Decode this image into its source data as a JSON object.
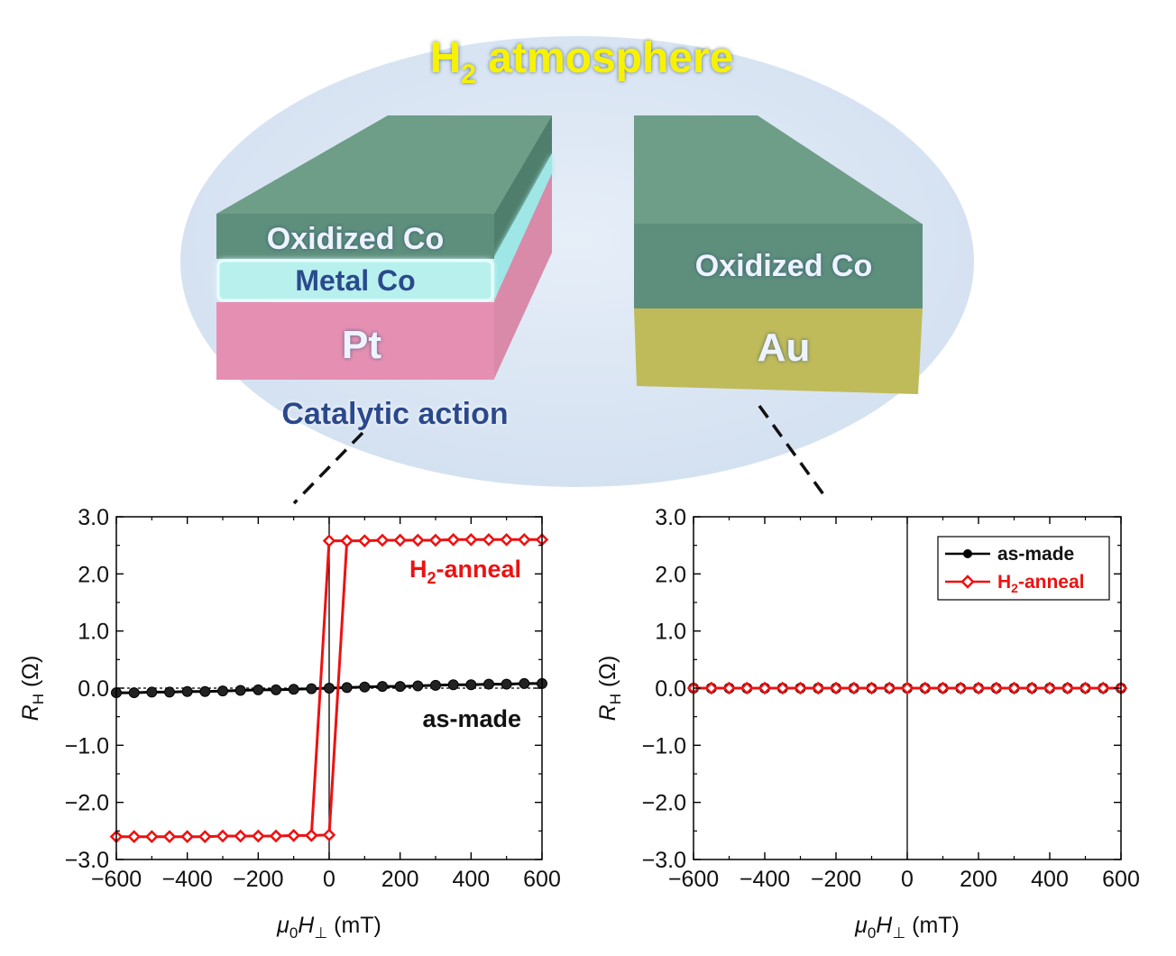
{
  "schematic": {
    "title_main": "H",
    "title_sub": "2",
    "title_rest": " atmosphere",
    "left_stack": {
      "top_layer": "Oxidized Co",
      "mid_layer": "Metal Co",
      "bottom_layer": "Pt",
      "caption": "Catalytic action"
    },
    "right_stack": {
      "top_layer": "Oxidized Co",
      "bottom_layer": "Au"
    },
    "colors": {
      "atmosphere": "#dbe6f4",
      "oxidized_co": "#5e8f7c",
      "metal_co": "#b8f0ee",
      "pt": "#e58fb2",
      "au": "#bfbb5a",
      "title": "#f7f200"
    }
  },
  "chart_data": [
    {
      "type": "line",
      "panel": "left",
      "xlabel_main": "μ",
      "xlabel_sub0": "0",
      "xlabel_h": "H",
      "xlabel_perp": "⊥",
      "xlabel_unit": " (mT)",
      "ylabel_main": "R",
      "ylabel_sub": "H",
      "ylabel_unit": " (Ω)",
      "xlim": [
        -600,
        600
      ],
      "ylim": [
        -3.0,
        3.0
      ],
      "xticks": [
        "−600",
        "−400",
        "−200",
        "0",
        "200",
        "400",
        "600"
      ],
      "yticks": [
        "3.0",
        "2.0",
        "1.0",
        "0.0",
        "−1.0",
        "−2.0",
        "−3.0"
      ],
      "annotations": {
        "h2": "H",
        "h2_sub": "2",
        "h2_rest": "-anneal",
        "asmade": "as-made"
      },
      "series": [
        {
          "name": "as-made",
          "color": "#000000",
          "marker": "circle",
          "x": [
            -600,
            -550,
            -500,
            -450,
            -400,
            -350,
            -300,
            -250,
            -200,
            -150,
            -100,
            -50,
            0,
            50,
            100,
            150,
            200,
            250,
            300,
            350,
            400,
            450,
            500,
            550,
            600
          ],
          "y": [
            -0.08,
            -0.08,
            -0.07,
            -0.07,
            -0.06,
            -0.06,
            -0.05,
            -0.04,
            -0.03,
            -0.03,
            -0.02,
            -0.01,
            0.0,
            0.01,
            0.02,
            0.03,
            0.03,
            0.04,
            0.05,
            0.06,
            0.06,
            0.07,
            0.07,
            0.08,
            0.08
          ]
        },
        {
          "name": "H2-anneal",
          "color": "#ee1111",
          "marker": "diamond",
          "x": [
            -600,
            -550,
            -500,
            -450,
            -400,
            -350,
            -300,
            -250,
            -200,
            -150,
            -100,
            -50,
            0,
            50,
            100,
            150,
            200,
            250,
            300,
            350,
            400,
            450,
            500,
            550,
            600,
            550,
            500,
            450,
            400,
            350,
            300,
            250,
            200,
            150,
            100,
            50,
            0,
            -50,
            -100,
            -150,
            -200,
            -250,
            -300,
            -350,
            -400,
            -450,
            -500,
            -550,
            -600
          ],
          "y": [
            -2.6,
            -2.6,
            -2.6,
            -2.6,
            -2.6,
            -2.6,
            -2.59,
            -2.59,
            -2.59,
            -2.59,
            -2.58,
            -2.58,
            -2.57,
            2.58,
            2.58,
            2.59,
            2.59,
            2.59,
            2.59,
            2.6,
            2.6,
            2.6,
            2.6,
            2.6,
            2.6,
            2.6,
            2.6,
            2.6,
            2.6,
            2.6,
            2.59,
            2.59,
            2.59,
            2.59,
            2.58,
            2.58,
            2.58,
            -2.58,
            -2.58,
            -2.59,
            -2.59,
            -2.59,
            -2.59,
            -2.6,
            -2.6,
            -2.6,
            -2.6,
            -2.6,
            -2.6
          ]
        }
      ]
    },
    {
      "type": "line",
      "panel": "right",
      "xlabel_main": "μ",
      "xlabel_sub0": "0",
      "xlabel_h": "H",
      "xlabel_perp": "⊥",
      "xlabel_unit": " (mT)",
      "ylabel_main": "R",
      "ylabel_sub": "H",
      "ylabel_unit": " (Ω)",
      "xlim": [
        -600,
        600
      ],
      "ylim": [
        -3.0,
        3.0
      ],
      "xticks": [
        "−600",
        "−400",
        "−200",
        "0",
        "200",
        "400",
        "600"
      ],
      "yticks": [
        "3.0",
        "2.0",
        "1.0",
        "0.0",
        "−1.0",
        "−2.0",
        "−3.0"
      ],
      "legend": {
        "position": "top-right",
        "asmade": "as-made",
        "h2": "H",
        "h2_sub": "2",
        "h2_rest": "-anneal"
      },
      "series": [
        {
          "name": "as-made",
          "color": "#000000",
          "marker": "circle",
          "x": [
            -600,
            -550,
            -500,
            -450,
            -400,
            -350,
            -300,
            -250,
            -200,
            -150,
            -100,
            -50,
            0,
            50,
            100,
            150,
            200,
            250,
            300,
            350,
            400,
            450,
            500,
            550,
            600
          ],
          "y": [
            0,
            0,
            0,
            0,
            0,
            0,
            0,
            0,
            0,
            0,
            0,
            0,
            0,
            0,
            0,
            0,
            0,
            0,
            0,
            0,
            0,
            0,
            0,
            0,
            0
          ]
        },
        {
          "name": "H2-anneal",
          "color": "#ee1111",
          "marker": "diamond",
          "x": [
            -600,
            -550,
            -500,
            -450,
            -400,
            -350,
            -300,
            -250,
            -200,
            -150,
            -100,
            -50,
            0,
            50,
            100,
            150,
            200,
            250,
            300,
            350,
            400,
            450,
            500,
            550,
            600
          ],
          "y": [
            0,
            0,
            0,
            0,
            0,
            0,
            0,
            0,
            0,
            0,
            0,
            0,
            0,
            0,
            0,
            0,
            0,
            0,
            0,
            0,
            0,
            0,
            0,
            0,
            0
          ]
        }
      ]
    }
  ]
}
